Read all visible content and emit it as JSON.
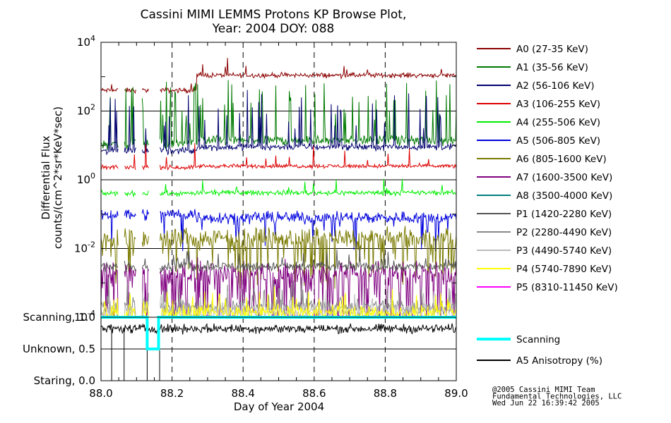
{
  "chart_data": {
    "type": "line",
    "title": "Cassini MIMI LEMMS Protons KP Browse Plot,",
    "subtitle": "Year: 2004 DOY: 088",
    "xlabel": "Day of Year 2004",
    "xlim": [
      88.0,
      89.0
    ],
    "x_ticks": [
      "88.0",
      "88.2",
      "88.4",
      "88.6",
      "88.8",
      "89.0"
    ],
    "upper_panel": {
      "ylabel_line1": "Differential Flux",
      "ylabel_line2": "counts/(cm^2*sr*KeV*sec)",
      "yscale": "log",
      "ylim": [
        0.0001,
        10000
      ],
      "y_ticks": [
        {
          "base": "10",
          "exp": "4",
          "value": 10000
        },
        {
          "base": "10",
          "exp": "2",
          "value": 100
        },
        {
          "base": "10",
          "exp": "0",
          "value": 1
        },
        {
          "base": "10",
          "exp": "-2",
          "value": 0.01
        },
        {
          "base": "10",
          "exp": "-4",
          "value": 0.0001
        }
      ],
      "data_gaps": [
        [
          88.05,
          88.065
        ],
        [
          88.1,
          88.115
        ],
        [
          88.135,
          88.165
        ]
      ],
      "series": [
        {
          "name": "A0 (27-35 KeV)",
          "color": "#8b0000",
          "level_before": 400,
          "level_after": 1100,
          "step_at": 88.27,
          "noise": 0.06,
          "spikes": 0.02,
          "spike_amp": 0.3
        },
        {
          "name": "A1 (35-56 KeV)",
          "color": "#007a00",
          "level_before": 11,
          "level_after": 14,
          "step_at": 88.27,
          "noise": 0.12,
          "spikes": 0.12,
          "spike_amp": 1.3
        },
        {
          "name": "A2 (56-106 KeV)",
          "color": "#00006e",
          "level_before": 7,
          "level_after": 9,
          "step_at": 88.27,
          "noise": 0.08,
          "spikes": 0.1,
          "spike_amp": 1.2
        },
        {
          "name": "A3 (106-255 KeV)",
          "color": "#dd0000",
          "level_before": 2.3,
          "level_after": 2.5,
          "step_at": 88.27,
          "noise": 0.05,
          "spikes": 0.03,
          "spike_amp": 0.5
        },
        {
          "name": "A4 (255-506 KeV)",
          "color": "#00ee00",
          "level_before": 0.4,
          "level_after": 0.42,
          "step_at": 88.27,
          "noise": 0.06,
          "spikes": 0.02,
          "spike_amp": 0.3
        },
        {
          "name": "A5 (506-805 KeV)",
          "color": "#0000dd",
          "level_before": 0.1,
          "level_after": 0.08,
          "step_at": 88.27,
          "noise": 0.15,
          "spikes": 0.05,
          "spike_amp": -0.7
        },
        {
          "name": "A6 (805-1600 KeV)",
          "color": "#7a7a00",
          "level_before": 0.02,
          "level_after": 0.02,
          "step_at": 88.27,
          "noise": 0.25,
          "spikes": 0.15,
          "spike_amp": -1.0
        },
        {
          "name": "A7 (1600-3500 KeV)",
          "color": "#800080",
          "level_before": 0.002,
          "level_after": 0.002,
          "step_at": 88.27,
          "noise": 0.3,
          "spikes": 0.25,
          "spike_amp": -1.2
        },
        {
          "name": "A8 (3500-4000 KeV)",
          "color": "#008080",
          "level_before": 0.0001,
          "level_after": 0.0001,
          "step_at": 88.27,
          "noise": 0.05,
          "spikes": 0.0,
          "spike_amp": 0
        },
        {
          "name": "P1 (1420-2280 KeV)",
          "color": "#555555",
          "level_before": 0.003,
          "level_after": 0.003,
          "step_at": 88.27,
          "noise": 0.12,
          "spikes": 0.05,
          "spike_amp": 0.4
        },
        {
          "name": "P2 (2280-4490 KeV)",
          "color": "#888888",
          "level_before": 0.0002,
          "level_after": 0.0002,
          "step_at": 88.27,
          "noise": 0.2,
          "spikes": 0.08,
          "spike_amp": 0.5
        },
        {
          "name": "P3 (4490-5740 KeV)",
          "color": "#bbbbbb",
          "level_before": 0.00015,
          "level_after": 0.00015,
          "step_at": 88.27,
          "noise": 0.2,
          "spikes": 0.08,
          "spike_amp": 0.4
        },
        {
          "name": "P4 (5740-7890 KeV)",
          "color": "#ffff00",
          "level_before": 0.00013,
          "level_after": 0.00013,
          "step_at": 88.27,
          "noise": 0.2,
          "spikes": 0.1,
          "spike_amp": 0.4
        },
        {
          "name": "P5 (8310-11450 KeV)",
          "color": "#ff00ff",
          "level_before": 0.0001,
          "level_after": 0.0001,
          "step_at": 88.27,
          "noise": 0.05,
          "spikes": 0.0,
          "spike_amp": 0
        }
      ]
    },
    "lower_panel": {
      "y_ticks": [
        {
          "label": "Scanning, 1.0",
          "value": 1.0
        },
        {
          "label": "Unknown, 0.5",
          "value": 0.5
        },
        {
          "label": "Staring, 0.0",
          "value": 0.0
        }
      ],
      "ylim": [
        0.0,
        1.0
      ],
      "scanning": {
        "name": "Scanning",
        "color": "#00ffff",
        "points": [
          [
            88.0,
            1.0
          ],
          [
            88.13,
            1.0
          ],
          [
            88.13,
            0.5
          ],
          [
            88.162,
            0.5
          ],
          [
            88.162,
            1.0
          ],
          [
            89.0,
            1.0
          ]
        ]
      },
      "anisotropy": {
        "name": "A5 Anisotropy (%)",
        "color": "#000000",
        "level": 0.82,
        "noise": 0.06,
        "drops_to_zero": [
          88.03,
          88.065,
          88.13,
          88.165
        ]
      }
    },
    "credits": [
      "@2005 Cassini MIMI Team",
      "Fundamental Technologies, LLC",
      "Wed Jun 22 16:39:42 2005"
    ]
  }
}
